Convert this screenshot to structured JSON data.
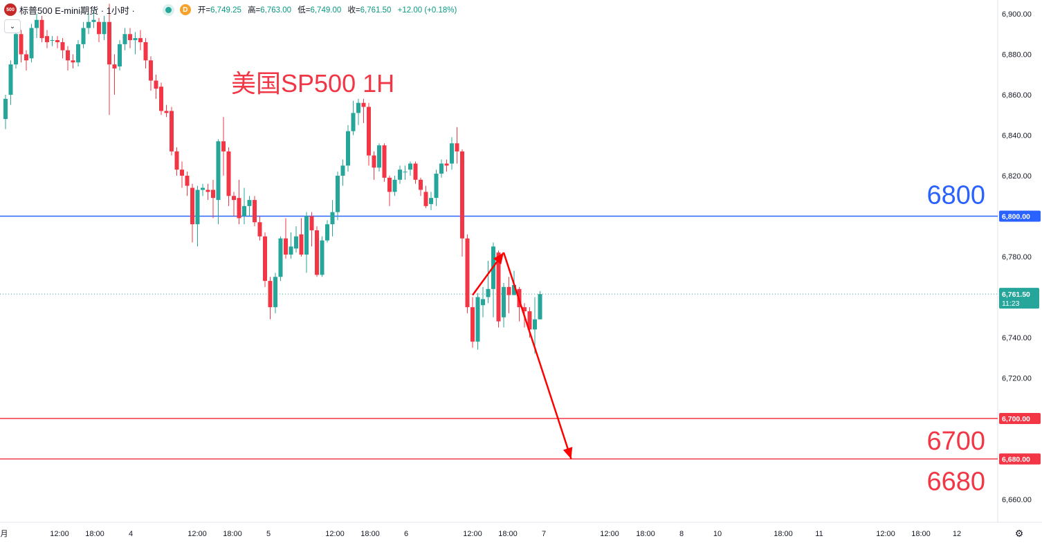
{
  "header": {
    "logo_text": "500",
    "symbol": "标普500 E-mini期货 · 1小时 ·",
    "d_badge": "D",
    "open_label": "开=",
    "open_value": "6,749.25",
    "high_label": "高=",
    "high_value": "6,763.00",
    "low_label": "低=",
    "low_value": "6,749.00",
    "close_label": "收=",
    "close_value": "6,761.50",
    "change_value": "+12.00 (+0.18%)"
  },
  "icons": {
    "collapse": "chevron-down-icon",
    "settings": "gear-icon"
  },
  "colors": {
    "up": "#26a69a",
    "down": "#f23645",
    "blue_level": "#2962ff",
    "red_level": "#f23645",
    "arrow": "#ff0000"
  },
  "chart_data": {
    "type": "candlestick",
    "annotation_title": "美国SP500 1H",
    "ylim": [
      6652,
      6905
    ],
    "y_ticks": [
      "6,900.00",
      "6,880.00",
      "6,860.00",
      "6,840.00",
      "6,820.00",
      "6,800.00",
      "6,780.00",
      "6,760.00",
      "6,740.00",
      "6,720.00",
      "6,700.00",
      "6,680.00",
      "6,660.00"
    ],
    "x_ticks": [
      "月",
      "12:00",
      "18:00",
      "4",
      "12:00",
      "18:00",
      "5",
      "12:00",
      "18:00",
      "6",
      "12:00",
      "18:00",
      "7",
      "12:00",
      "18:00",
      "8",
      "10",
      "18:00",
      "11",
      "12:00",
      "18:00",
      "12"
    ],
    "current_price": {
      "value": 6761.5,
      "label": "6,761.50",
      "countdown": "11:23"
    },
    "levels": [
      {
        "value": 6800,
        "label": "6,800.00",
        "big_label": "6800",
        "color": "#2962ff"
      },
      {
        "value": 6700,
        "label": "6,700.00",
        "big_label": "6700",
        "color": "#f23645"
      },
      {
        "value": 6680,
        "label": "6,680.00",
        "big_label": "6680",
        "color": "#f23645"
      }
    ],
    "projection": [
      {
        "bar": 90,
        "price": 6761
      },
      {
        "bar": 96,
        "price": 6782
      },
      {
        "bar": 109,
        "price": 6680
      }
    ],
    "candles": [
      [
        6848,
        6858,
        6843,
        6860
      ],
      [
        6860,
        6875,
        6855,
        6877
      ],
      [
        6875,
        6890,
        6873,
        6896
      ],
      [
        6890,
        6880,
        6876,
        6892
      ],
      [
        6880,
        6877,
        6872,
        6882
      ],
      [
        6878,
        6893,
        6876,
        6895
      ],
      [
        6893,
        6897,
        6888,
        6900
      ],
      [
        6897,
        6888,
        6886,
        6899
      ],
      [
        6889,
        6886,
        6883,
        6892
      ],
      [
        6887,
        6887,
        6884,
        6889
      ],
      [
        6887,
        6886,
        6883,
        6889
      ],
      [
        6886,
        6882,
        6878,
        6888
      ],
      [
        6882,
        6877,
        6872,
        6884
      ],
      [
        6877,
        6876,
        6873,
        6880
      ],
      [
        6876,
        6885,
        6874,
        6887
      ],
      [
        6885,
        6893,
        6883,
        6896
      ],
      [
        6893,
        6896,
        6890,
        6900
      ],
      [
        6896,
        6897,
        6893,
        6902
      ],
      [
        6896,
        6890,
        6886,
        6898
      ],
      [
        6890,
        6896,
        6887,
        6899
      ],
      [
        6896,
        6875,
        6850,
        6905
      ],
      [
        6875,
        6873,
        6860,
        6880
      ],
      [
        6874,
        6885,
        6872,
        6887
      ],
      [
        6885,
        6890,
        6882,
        6893
      ],
      [
        6890,
        6887,
        6883,
        6893
      ],
      [
        6887,
        6888,
        6880,
        6891
      ],
      [
        6888,
        6886,
        6882,
        6892
      ],
      [
        6886,
        6877,
        6873,
        6888
      ],
      [
        6877,
        6867,
        6862,
        6879
      ],
      [
        6867,
        6863,
        6858,
        6870
      ],
      [
        6864,
        6852,
        6850,
        6866
      ],
      [
        6852,
        6851,
        6849,
        6855
      ],
      [
        6852,
        6832,
        6830,
        6854
      ],
      [
        6832,
        6823,
        6820,
        6834
      ],
      [
        6823,
        6820,
        6814,
        6827
      ],
      [
        6820,
        6815,
        6810,
        6822
      ],
      [
        6814,
        6796,
        6787,
        6816
      ],
      [
        6796,
        6813,
        6785,
        6815
      ],
      [
        6813,
        6814,
        6810,
        6816
      ],
      [
        6813,
        6812,
        6808,
        6816
      ],
      [
        6813,
        6809,
        6799,
        6818
      ],
      [
        6808,
        6837,
        6796,
        6838
      ],
      [
        6837,
        6832,
        6820,
        6849
      ],
      [
        6832,
        6810,
        6805,
        6834
      ],
      [
        6810,
        6808,
        6800,
        6812
      ],
      [
        6809,
        6799,
        6796,
        6818
      ],
      [
        6800,
        6805,
        6796,
        6814
      ],
      [
        6805,
        6808,
        6800,
        6810
      ],
      [
        6808,
        6797,
        6795,
        6810
      ],
      [
        6797,
        6790,
        6788,
        6800
      ],
      [
        6790,
        6768,
        6765,
        6792
      ],
      [
        6768,
        6755,
        6749,
        6770
      ],
      [
        6755,
        6770,
        6752,
        6772
      ],
      [
        6770,
        6789,
        6768,
        6790
      ],
      [
        6789,
        6781,
        6779,
        6799
      ],
      [
        6781,
        6785,
        6779,
        6792
      ],
      [
        6784,
        6790,
        6782,
        6795
      ],
      [
        6791,
        6781,
        6780,
        6799
      ],
      [
        6781,
        6800,
        6772,
        6802
      ],
      [
        6800,
        6793,
        6785,
        6802
      ],
      [
        6793,
        6771,
        6770,
        6795
      ],
      [
        6771,
        6788,
        6770,
        6790
      ],
      [
        6788,
        6796,
        6787,
        6798
      ],
      [
        6796,
        6802,
        6790,
        6808
      ],
      [
        6802,
        6820,
        6798,
        6822
      ],
      [
        6820,
        6825,
        6815,
        6828
      ],
      [
        6825,
        6842,
        6822,
        6845
      ],
      [
        6842,
        6851,
        6840,
        6857
      ],
      [
        6851,
        6856,
        6845,
        6858
      ],
      [
        6856,
        6854,
        6846,
        6858
      ],
      [
        6854,
        6830,
        6825,
        6856
      ],
      [
        6830,
        6824,
        6818,
        6832
      ],
      [
        6824,
        6835,
        6822,
        6836
      ],
      [
        6835,
        6819,
        6817,
        6836
      ],
      [
        6819,
        6812,
        6805,
        6820
      ],
      [
        6812,
        6818,
        6810,
        6820
      ],
      [
        6818,
        6823,
        6816,
        6825
      ],
      [
        6822,
        6822,
        6818,
        6825
      ],
      [
        6823,
        6826,
        6820,
        6827
      ],
      [
        6826,
        6818,
        6816,
        6827
      ],
      [
        6818,
        6813,
        6810,
        6819
      ],
      [
        6812,
        6805,
        6804,
        6815
      ],
      [
        6806,
        6809,
        6803,
        6812
      ],
      [
        6809,
        6821,
        6805,
        6823
      ],
      [
        6821,
        6826,
        6819,
        6828
      ],
      [
        6826,
        6825,
        6822,
        6828
      ],
      [
        6826,
        6836,
        6823,
        6839
      ],
      [
        6836,
        6832,
        6826,
        6844
      ],
      [
        6832,
        6789,
        6780,
        6833
      ],
      [
        6789,
        6755,
        6752,
        6791
      ],
      [
        6755,
        6738,
        6735,
        6760
      ],
      [
        6738,
        6760,
        6734,
        6762
      ],
      [
        6756,
        6759,
        6750,
        6765
      ],
      [
        6760,
        6764,
        6757,
        6778
      ],
      [
        6764,
        6785,
        6750,
        6787
      ],
      [
        6782,
        6748,
        6745,
        6783
      ],
      [
        6750,
        6765,
        6745,
        6767
      ],
      [
        6765,
        6761,
        6752,
        6770
      ],
      [
        6761,
        6766,
        6761,
        6773
      ],
      [
        6764,
        6755,
        6748,
        6765
      ],
      [
        6755,
        6753,
        6745,
        6757
      ],
      [
        6753,
        6744,
        6740,
        6755
      ],
      [
        6744,
        6749,
        6732,
        6760
      ],
      [
        6749,
        6761.5,
        6749,
        6763
      ]
    ]
  }
}
